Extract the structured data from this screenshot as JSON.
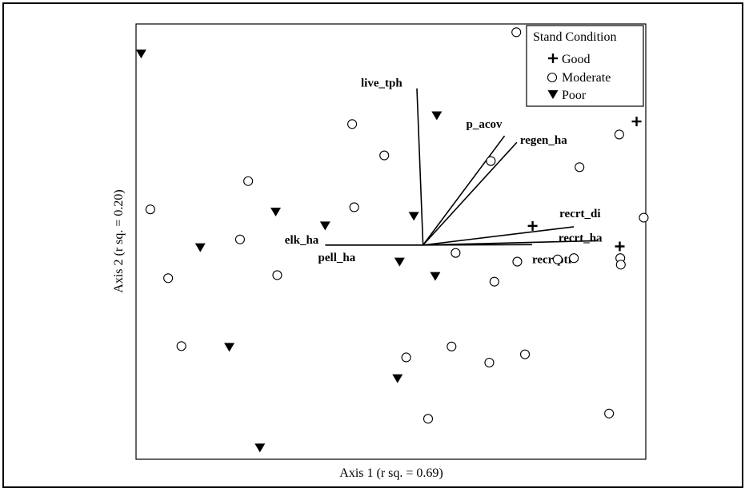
{
  "chart_data": {
    "type": "scatter",
    "xlabel": "Axis 1 (r sq. = 0.69)",
    "ylabel": "Axis 2 (r sq. = 0.20)",
    "legend": {
      "title": "Stand Condition",
      "placement": "top-right",
      "entries": [
        {
          "name": "Good",
          "marker": "plus"
        },
        {
          "name": "Moderate",
          "marker": "circle"
        },
        {
          "name": "Poor",
          "marker": "triangle-down"
        }
      ]
    },
    "xlim": [
      0,
      100
    ],
    "ylim": [
      0,
      100
    ],
    "series": [
      {
        "name": "Good",
        "marker": "plus",
        "points": [
          [
            98.2,
            77.6
          ],
          [
            77.8,
            53.6
          ],
          [
            94.9,
            48.9
          ]
        ]
      },
      {
        "name": "Moderate",
        "marker": "circle",
        "points": [
          [
            74.6,
            98.1
          ],
          [
            77.9,
            82.4
          ],
          [
            88.8,
            86.3
          ],
          [
            42.4,
            77.0
          ],
          [
            48.7,
            69.8
          ],
          [
            69.6,
            68.5
          ],
          [
            94.8,
            74.6
          ],
          [
            87.0,
            67.1
          ],
          [
            22.0,
            63.9
          ],
          [
            2.8,
            57.4
          ],
          [
            42.8,
            57.9
          ],
          [
            99.6,
            55.5
          ],
          [
            20.4,
            50.5
          ],
          [
            62.7,
            47.4
          ],
          [
            74.8,
            45.4
          ],
          [
            82.7,
            45.9
          ],
          [
            85.9,
            46.2
          ],
          [
            95.0,
            46.2
          ],
          [
            95.1,
            44.7
          ],
          [
            6.3,
            41.6
          ],
          [
            27.7,
            42.3
          ],
          [
            70.3,
            40.8
          ],
          [
            8.9,
            26.0
          ],
          [
            61.9,
            25.9
          ],
          [
            53.0,
            23.4
          ],
          [
            69.3,
            22.2
          ],
          [
            76.3,
            24.1
          ],
          [
            57.3,
            9.3
          ],
          [
            92.8,
            10.5
          ]
        ]
      },
      {
        "name": "Poor",
        "marker": "triangle-down",
        "points": [
          [
            1.0,
            93.1
          ],
          [
            59.0,
            78.9
          ],
          [
            27.4,
            56.8
          ],
          [
            54.5,
            55.8
          ],
          [
            37.1,
            53.6
          ],
          [
            12.6,
            48.6
          ],
          [
            51.7,
            45.3
          ],
          [
            58.7,
            42.0
          ],
          [
            18.3,
            25.7
          ],
          [
            51.3,
            18.5
          ],
          [
            24.3,
            2.6
          ]
        ]
      }
    ],
    "vectors": [
      {
        "label": "live_tph",
        "end": [
          55.1,
          85.2
        ]
      },
      {
        "label": "p_acov",
        "end": [
          72.3,
          74.3
        ]
      },
      {
        "label": "regen_ha",
        "end": [
          74.7,
          72.8
        ]
      },
      {
        "label": "recrt_di",
        "end": [
          85.9,
          53.4
        ]
      },
      {
        "label": "recrt_ha",
        "end": [
          90.4,
          50.2
        ]
      },
      {
        "label": "recrtptr",
        "end": [
          77.7,
          49.3
        ]
      },
      {
        "label": "elk_ha",
        "end": [
          37.1,
          49.2
        ]
      },
      {
        "label": "pell_ha",
        "end": [
          37.4,
          49.2
        ]
      }
    ],
    "vector_origin": [
      56.3,
      49.2
    ]
  },
  "colors": {
    "ink": "#000000",
    "background": "#ffffff"
  }
}
